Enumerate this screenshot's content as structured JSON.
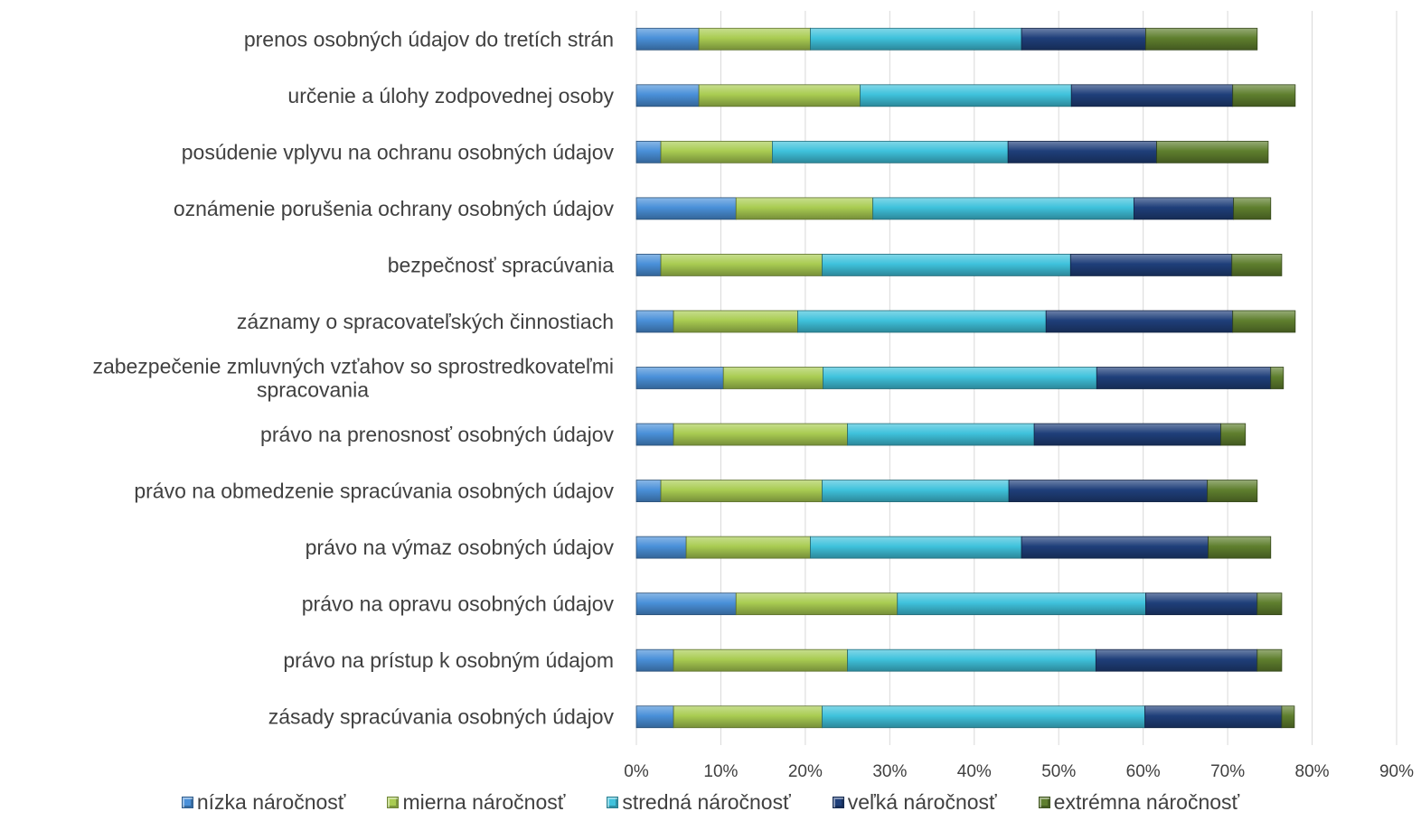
{
  "chart_data": {
    "type": "bar",
    "orientation": "horizontal",
    "stacked": true,
    "categories": [
      "prenos osobných údajov do tretích strán",
      "určenie a úlohy zodpovednej osoby",
      "posúdenie vplyvu na ochranu osobných údajov",
      "oznámenie porušenia ochrany osobných údajov",
      "bezpečnosť spracúvania",
      "záznamy o spracovateľských činnostiach",
      "zabezpečenie zmluvných vzťahov so sprostredkovateľmi spracovania",
      "právo na prenosnosť osobných údajov",
      "právo na obmedzenie spracúvania osobných údajov",
      "právo na výmaz osobných údajov",
      "právo na opravu osobných údajov",
      "právo na prístup k osobným údajom",
      "zásady spracúvania osobných údajov"
    ],
    "category_lines": [
      [
        "prenos osobných údajov do tretích strán"
      ],
      [
        "určenie a úlohy zodpovednej osoby"
      ],
      [
        "posúdenie vplyvu na ochranu osobných údajov"
      ],
      [
        "oznámenie porušenia ochrany osobných údajov"
      ],
      [
        "bezpečnosť spracúvania"
      ],
      [
        "záznamy o spracovateľských činnostiach"
      ],
      [
        "zabezpečenie zmluvných vzťahov so sprostredkovateľmi",
        "spracovania"
      ],
      [
        "právo na prenosnosť osobných údajov"
      ],
      [
        "právo na obmedzenie spracúvania osobných údajov"
      ],
      [
        "právo na výmaz osobných údajov"
      ],
      [
        "právo na opravu osobných údajov"
      ],
      [
        "právo na prístup k osobným údajom"
      ],
      [
        "zásady spracúvania osobných údajov"
      ]
    ],
    "series": [
      {
        "name": "nízka náročnosť",
        "color": "#4a90d9",
        "values": [
          7.4,
          7.4,
          2.9,
          11.8,
          2.9,
          4.4,
          10.3,
          4.4,
          2.9,
          5.9,
          11.8,
          4.4,
          4.4
        ]
      },
      {
        "name": "mierna náročnosť",
        "color": "#a9cc52",
        "values": [
          13.2,
          19.1,
          13.2,
          16.2,
          19.1,
          14.7,
          11.8,
          20.6,
          19.1,
          14.7,
          19.1,
          20.6,
          17.6
        ]
      },
      {
        "name": "stredná náročnosť",
        "color": "#3fc2dc",
        "values": [
          25.0,
          25.0,
          27.9,
          30.9,
          29.4,
          29.4,
          32.4,
          22.1,
          22.1,
          25.0,
          29.4,
          29.4,
          38.2
        ]
      },
      {
        "name": "veľká náročnosť",
        "color": "#1f3f7a",
        "values": [
          14.7,
          19.1,
          17.6,
          11.8,
          19.1,
          22.1,
          20.6,
          22.1,
          23.5,
          22.1,
          13.2,
          19.1,
          16.2
        ]
      },
      {
        "name": "extrémna náročnosť",
        "color": "#5f7f2e",
        "values": [
          13.2,
          7.4,
          13.2,
          4.4,
          5.9,
          7.4,
          1.5,
          2.9,
          5.9,
          7.4,
          2.9,
          2.9,
          1.5
        ]
      }
    ],
    "xlim": [
      0,
      90
    ],
    "ticks": [
      0,
      10,
      20,
      30,
      40,
      50,
      60,
      70,
      80,
      90
    ],
    "tick_labels": [
      "0%",
      "10%",
      "20%",
      "30%",
      "40%",
      "50%",
      "60%",
      "70%",
      "80%",
      "90%"
    ],
    "grid": true,
    "legend_position": "bottom",
    "title": "",
    "xlabel": "",
    "ylabel": ""
  }
}
